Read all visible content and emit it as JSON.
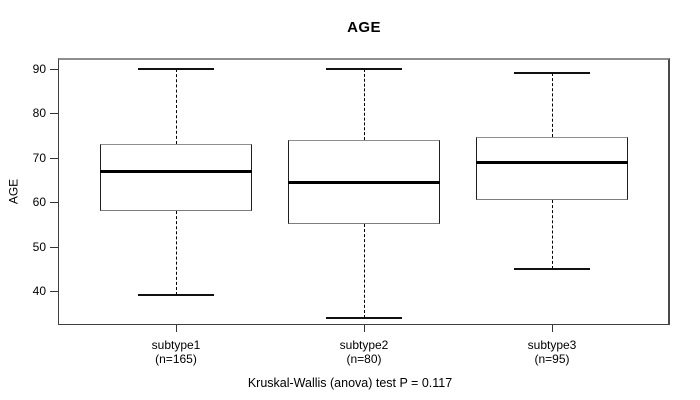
{
  "chart_data": {
    "type": "box",
    "title": "AGE",
    "xlabel": "",
    "ylabel": "AGE",
    "y_ticks": [
      40,
      50,
      60,
      70,
      80,
      90
    ],
    "ylim_display": [
      32.4,
      92.4
    ],
    "grid": false,
    "legend": null,
    "groups": [
      {
        "label": "subtype1",
        "sublabel": "(n=165)",
        "n": 165,
        "whisker_low": 39,
        "q1": 58,
        "median": 67,
        "q3": 73,
        "whisker_high": 90
      },
      {
        "label": "subtype2",
        "sublabel": "(n=80)",
        "n": 80,
        "whisker_low": 34,
        "q1": 55,
        "median": 64.5,
        "q3": 74,
        "whisker_high": 90
      },
      {
        "label": "subtype3",
        "sublabel": "(n=95)",
        "n": 95,
        "whisker_low": 45,
        "q1": 60.5,
        "median": 69,
        "q3": 74.5,
        "whisker_high": 89
      }
    ],
    "annotation": "Kruskal-Wallis (anova) test P = 0.117"
  },
  "colors": {
    "background": "#ffffff",
    "text": "#000000",
    "frame": "#8e8e8e",
    "box_border": "#1f1f1f",
    "median": "#000000",
    "whisker": "#000000"
  }
}
